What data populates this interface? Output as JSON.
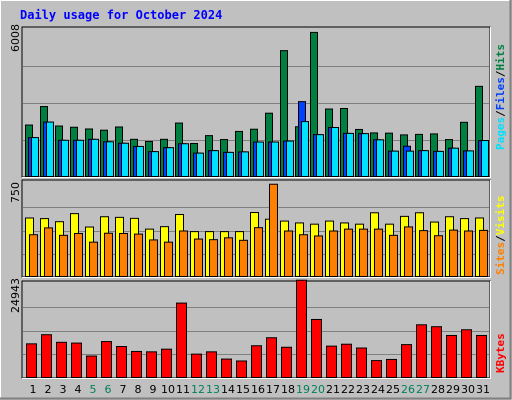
{
  "chart_data": [
    {
      "type": "bar",
      "title": "Daily usage for October 2024",
      "panel": "hits-files-pages",
      "categories": [
        "1",
        "2",
        "3",
        "4",
        "5",
        "6",
        "7",
        "8",
        "9",
        "10",
        "11",
        "12",
        "13",
        "14",
        "15",
        "16",
        "17",
        "18",
        "19",
        "20",
        "21",
        "22",
        "23",
        "24",
        "25",
        "26",
        "27",
        "28",
        "29",
        "30",
        "31"
      ],
      "weekend_days": [
        "5",
        "6",
        "12",
        "13",
        "19",
        "20",
        "26",
        "27"
      ],
      "ylim": [
        0,
        6008
      ],
      "y_tick_label": "6008",
      "series": [
        {
          "name": "Hits",
          "color": "#008040",
          "values": [
            2130,
            2880,
            2090,
            2040,
            1970,
            1920,
            2050,
            1550,
            1460,
            1550,
            2210,
            1380,
            1700,
            1540,
            1870,
            1960,
            2610,
            5150,
            2060,
            5890,
            2780,
            2800,
            1950,
            1810,
            1800,
            1730,
            1750,
            1770,
            1540,
            2240,
            3700
          ]
        },
        {
          "name": "Files",
          "color": "#0040ff",
          "values": [
            1620,
            2250,
            1510,
            1510,
            1550,
            1450,
            1390,
            1260,
            1050,
            1210,
            1370,
            990,
            1090,
            1020,
            1040,
            1440,
            1440,
            1480,
            3080,
            1740,
            2030,
            1790,
            1780,
            1530,
            1070,
            1270,
            1090,
            1060,
            1190,
            1080,
            1500
          ]
        },
        {
          "name": "Pages",
          "color": "#00e0ff",
          "values": [
            1620,
            2250,
            1510,
            1510,
            1550,
            1450,
            1390,
            1260,
            1050,
            1210,
            1370,
            990,
            1090,
            1020,
            1040,
            1440,
            1440,
            1480,
            2270,
            1740,
            2030,
            1790,
            1780,
            1530,
            1070,
            1070,
            1090,
            1060,
            1190,
            1080,
            1500
          ]
        }
      ],
      "legend": [
        "Pages",
        "Files",
        "Hits"
      ],
      "legend_separator": "/"
    },
    {
      "type": "bar",
      "panel": "sites-visits",
      "categories": [
        "1",
        "2",
        "3",
        "4",
        "5",
        "6",
        "7",
        "8",
        "9",
        "10",
        "11",
        "12",
        "13",
        "14",
        "15",
        "16",
        "17",
        "18",
        "19",
        "20",
        "21",
        "22",
        "23",
        "24",
        "25",
        "26",
        "27",
        "28",
        "29",
        "30",
        "31"
      ],
      "ylim": [
        0,
        750
      ],
      "y_tick_label": "750",
      "series": [
        {
          "name": "Visits",
          "color": "#ffff00",
          "values": [
            480,
            475,
            450,
            515,
            407,
            490,
            485,
            477,
            390,
            410,
            508,
            370,
            370,
            370,
            370,
            524,
            470,
            455,
            440,
            430,
            455,
            440,
            430,
            522,
            430,
            493,
            522,
            447,
            490,
            475,
            480
          ]
        },
        {
          "name": "Sites",
          "color": "#ff8000",
          "values": [
            345,
            400,
            340,
            355,
            285,
            357,
            355,
            350,
            303,
            285,
            375,
            310,
            305,
            320,
            300,
            402,
            752,
            375,
            345,
            335,
            375,
            390,
            390,
            390,
            340,
            408,
            378,
            337,
            382,
            375,
            380
          ]
        }
      ],
      "legend": [
        "Sites",
        "Visits"
      ],
      "legend_separator": "/"
    },
    {
      "type": "bar",
      "panel": "kbytes",
      "categories": [
        "1",
        "2",
        "3",
        "4",
        "5",
        "6",
        "7",
        "8",
        "9",
        "10",
        "11",
        "12",
        "13",
        "14",
        "15",
        "16",
        "17",
        "18",
        "19",
        "20",
        "21",
        "22",
        "23",
        "24",
        "25",
        "26",
        "27",
        "28",
        "29",
        "30",
        "31"
      ],
      "ylim": [
        0,
        24943
      ],
      "y_tick_label": "24943",
      "series": [
        {
          "name": "KBytes",
          "color": "#ff0000",
          "values": [
            9100,
            11500,
            9500,
            9300,
            5900,
            9700,
            8400,
            7100,
            7000,
            7700,
            19800,
            6400,
            7000,
            5100,
            4600,
            8600,
            10700,
            8200,
            25800,
            15500,
            8500,
            9000,
            8000,
            4700,
            5000,
            8900,
            14100,
            13600,
            11300,
            12800,
            11300
          ]
        }
      ],
      "legend": [
        "KBytes"
      ]
    }
  ]
}
